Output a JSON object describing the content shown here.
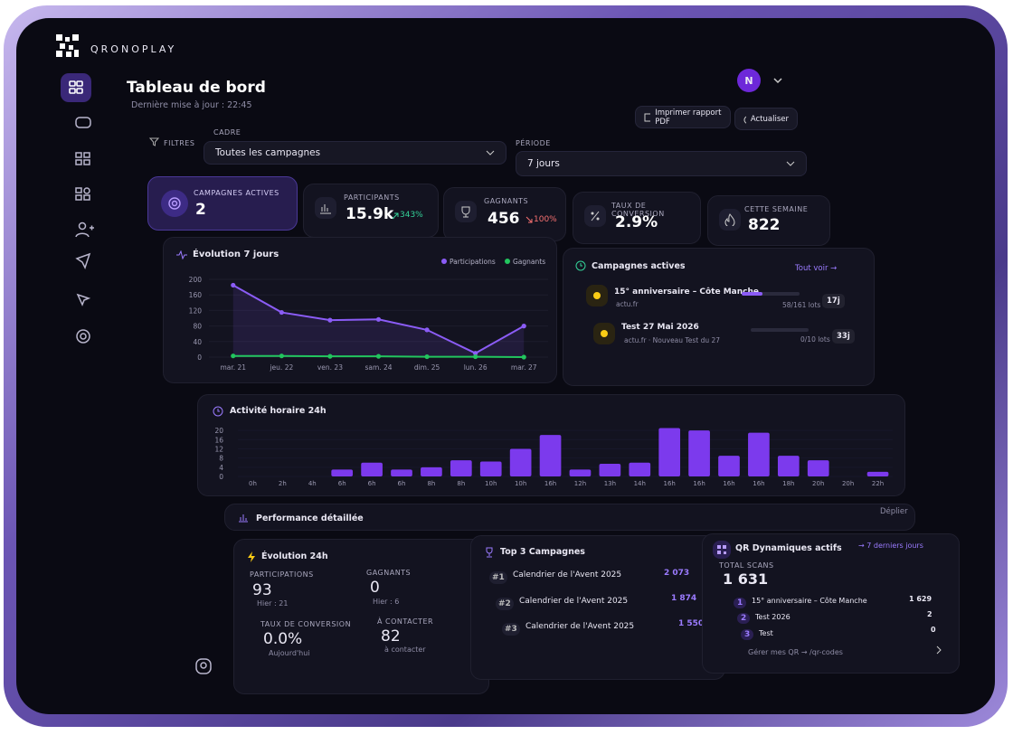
{
  "brand": "QRONOPLAY",
  "header": {
    "title": "Tableau de bord",
    "subtitle": "Dernière mise à jour : 22:45",
    "avatar": "N",
    "print_button": "Imprimer rapport PDF",
    "refresh_button": "Actualiser"
  },
  "filters": {
    "label": "FILTRES",
    "frame_label": "CADRE",
    "frame_value": "Toutes les campagnes",
    "period_label": "PÉRIODE",
    "period_value": "7 jours"
  },
  "kpis": [
    {
      "label": "CAMPAGNES ACTIVES",
      "value": "2"
    },
    {
      "label": "PARTICIPANTS",
      "value": "15.9k",
      "delta": "343%"
    },
    {
      "label": "GAGNANTS",
      "value": "456",
      "delta": "100%"
    },
    {
      "label": "TAUX DE CONVERSION",
      "value": "2.9%"
    },
    {
      "label": "CETTE SEMAINE",
      "value": "822"
    }
  ],
  "chart_data": [
    {
      "type": "line",
      "title": "Évolution 7 jours",
      "categories": [
        "mar. 21",
        "jeu. 22",
        "ven. 23",
        "sam. 24",
        "dim. 25",
        "lun. 26",
        "mar. 27"
      ],
      "series": [
        {
          "name": "Participations",
          "color": "#8b5cf6",
          "values": [
            185,
            115,
            95,
            97,
            70,
            10,
            80
          ]
        },
        {
          "name": "Gagnants",
          "color": "#22c55e",
          "values": [
            3,
            3,
            2,
            2,
            1,
            1,
            0
          ]
        }
      ],
      "ylim": [
        0,
        200
      ],
      "yticks": [
        0,
        40,
        80,
        120,
        160,
        200
      ]
    },
    {
      "type": "bar",
      "title": "Activité horaire 24h",
      "categories": [
        "0h",
        "2h",
        "4h",
        "6h",
        "6h",
        "6h",
        "8h",
        "8h",
        "10h",
        "10h",
        "16h",
        "12h",
        "13h",
        "14h",
        "16h",
        "16h",
        "16h",
        "16h",
        "18h",
        "20h",
        "20h",
        "22h"
      ],
      "values": [
        0,
        0,
        0,
        3,
        6,
        3,
        4,
        7,
        6.5,
        12,
        18,
        3,
        5.5,
        6,
        21,
        20,
        9,
        19,
        9,
        7,
        0,
        2
      ],
      "color": "#7c3aed",
      "ylim": [
        0,
        22
      ],
      "yticks": [
        0,
        4,
        8,
        12,
        16,
        20
      ]
    }
  ],
  "active_campaigns": {
    "title": "Campagnes actives",
    "link": "Tout voir →",
    "items": [
      {
        "name": "15° anniversaire – Côte Manche",
        "source": "actu.fr",
        "lots": "58/161 lots",
        "days": "17j"
      },
      {
        "name": "Test 27 Mai 2026",
        "source": "actu.fr · Nouveau Test du 27",
        "lots": "0/10 lots",
        "days": "33j"
      }
    ]
  },
  "performance": {
    "title": "Performance détaillée",
    "toggle": "Déplier",
    "evolution": {
      "title": "Évolution 24h",
      "stats": [
        {
          "label": "PARTICIPATIONS",
          "value": "93",
          "note": "Hier : 21"
        },
        {
          "label": "GAGNANTS",
          "value": "0",
          "note": "Hier : 6"
        },
        {
          "label": "TAUX DE CONVERSION",
          "value": "0.0%",
          "note": "Aujourd'hui"
        },
        {
          "label": "À CONTACTER",
          "value": "82",
          "note": "à contacter"
        }
      ]
    },
    "top3": {
      "title": "Top 3 Campagnes",
      "rows": [
        {
          "rank": "#1",
          "name": "Calendrier de l'Avent 2025",
          "value": "2 073"
        },
        {
          "rank": "#2",
          "name": "Calendrier de l'Avent 2025",
          "value": "1 874"
        },
        {
          "rank": "#3",
          "name": "Calendrier de l'Avent 2025",
          "value": "1 550"
        }
      ]
    },
    "qr": {
      "title": "QR Dynamiques actifs",
      "range": "→ 7 derniers jours",
      "total_label": "TOTAL SCANS",
      "total": "1 631",
      "rows": [
        {
          "rank": "1",
          "name": "15° anniversaire – Côte Manche",
          "value": "1 629"
        },
        {
          "rank": "2",
          "name": "Test 2026",
          "value": "2"
        },
        {
          "rank": "3",
          "name": "Test",
          "value": "0"
        }
      ],
      "manage": "Gérer mes QR → /qr-codes"
    }
  }
}
